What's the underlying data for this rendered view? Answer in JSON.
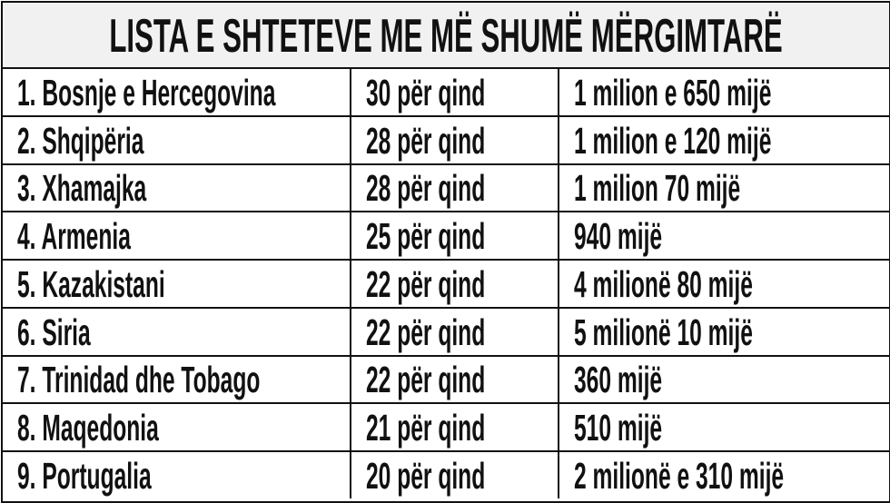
{
  "title": "LISTA E SHTETEVE ME MË SHUMË MËRGIMTARË",
  "rows": [
    [
      "1. Bosnje e Hercegovina",
      "30 për qind",
      "1 milion e 650 mijë"
    ],
    [
      "2. Shqipëria",
      "28 për qind",
      "1 milion e 120 mijë"
    ],
    [
      "3. Xhamajka",
      "28 për qind",
      "1 milion 70 mijë"
    ],
    [
      "4. Armenia",
      "25 për qind",
      "940 mijë"
    ],
    [
      "5. Kazakistani",
      "22 për qind",
      "4 milionë 80 mijë"
    ],
    [
      "6. Siria",
      "22 për qind",
      "5 milionë 10 mijë"
    ],
    [
      "7. Trinidad dhe Tobago",
      "22 për qind",
      "360 mijë"
    ],
    [
      "8. Maqedonia",
      "21 për qind",
      "510 mijë"
    ],
    [
      "9. Portugalia",
      "20 për qind",
      "2 milionë e 310 mijë"
    ]
  ]
}
